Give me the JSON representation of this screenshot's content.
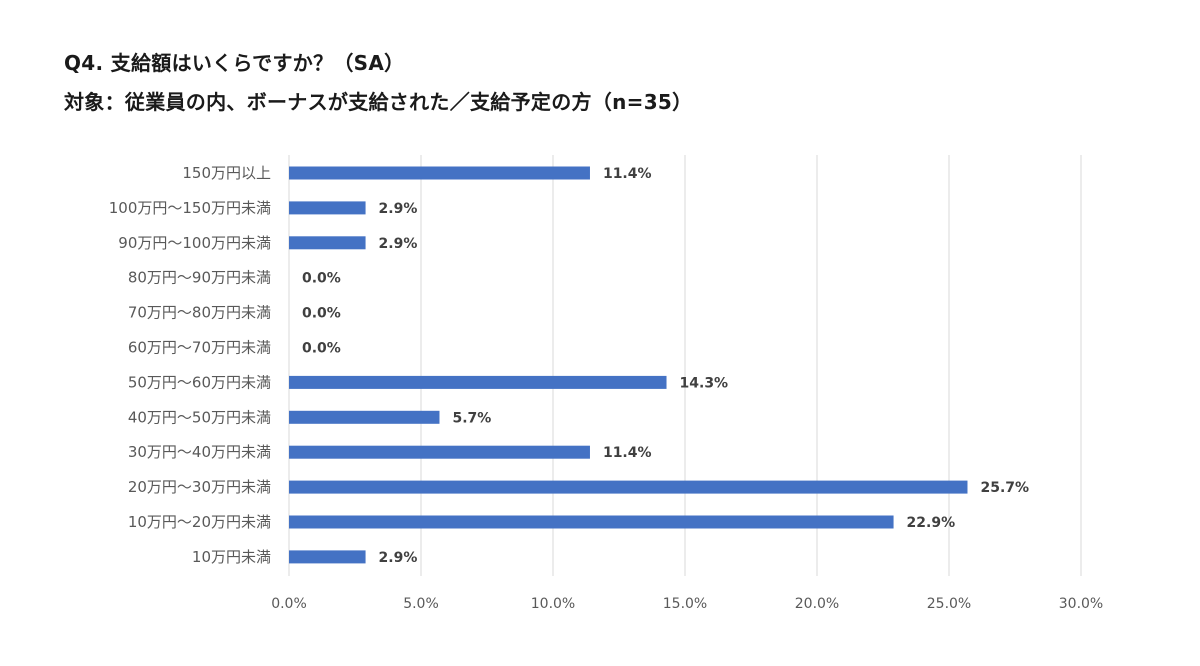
{
  "title_line1": "Q4.  支給額はいくらですか？（SA）",
  "title_line2": "対象：従業員の内、ボーナスが支給された／支給予定の方（n=35）",
  "chart_data": {
    "type": "bar",
    "orientation": "horizontal",
    "categories": [
      "150万円以上",
      "100万円～150万円未満",
      "90万円～100万円未満",
      "80万円～90万円未満",
      "70万円～80万円未満",
      "60万円～70万円未満",
      "50万円～60万円未満",
      "40万円～50万円未満",
      "30万円～40万円未満",
      "20万円～30万円未満",
      "10万円～20万円未満",
      "10万円未満"
    ],
    "values": [
      11.4,
      2.9,
      2.9,
      0.0,
      0.0,
      0.0,
      14.3,
      5.7,
      11.4,
      25.7,
      22.9,
      2.9
    ],
    "value_labels": [
      "11.4%",
      "2.9%",
      "2.9%",
      "0.0%",
      "0.0%",
      "0.0%",
      "14.3%",
      "5.7%",
      "11.4%",
      "25.7%",
      "22.9%",
      "2.9%"
    ],
    "xlim": [
      0,
      30
    ],
    "xticks": [
      "0.0%",
      "5.0%",
      "10.0%",
      "15.0%",
      "20.0%",
      "25.0%",
      "30.0%"
    ],
    "grid": "vertical",
    "bar_color": "#4472C4",
    "grid_color": "#d9d9d9"
  }
}
